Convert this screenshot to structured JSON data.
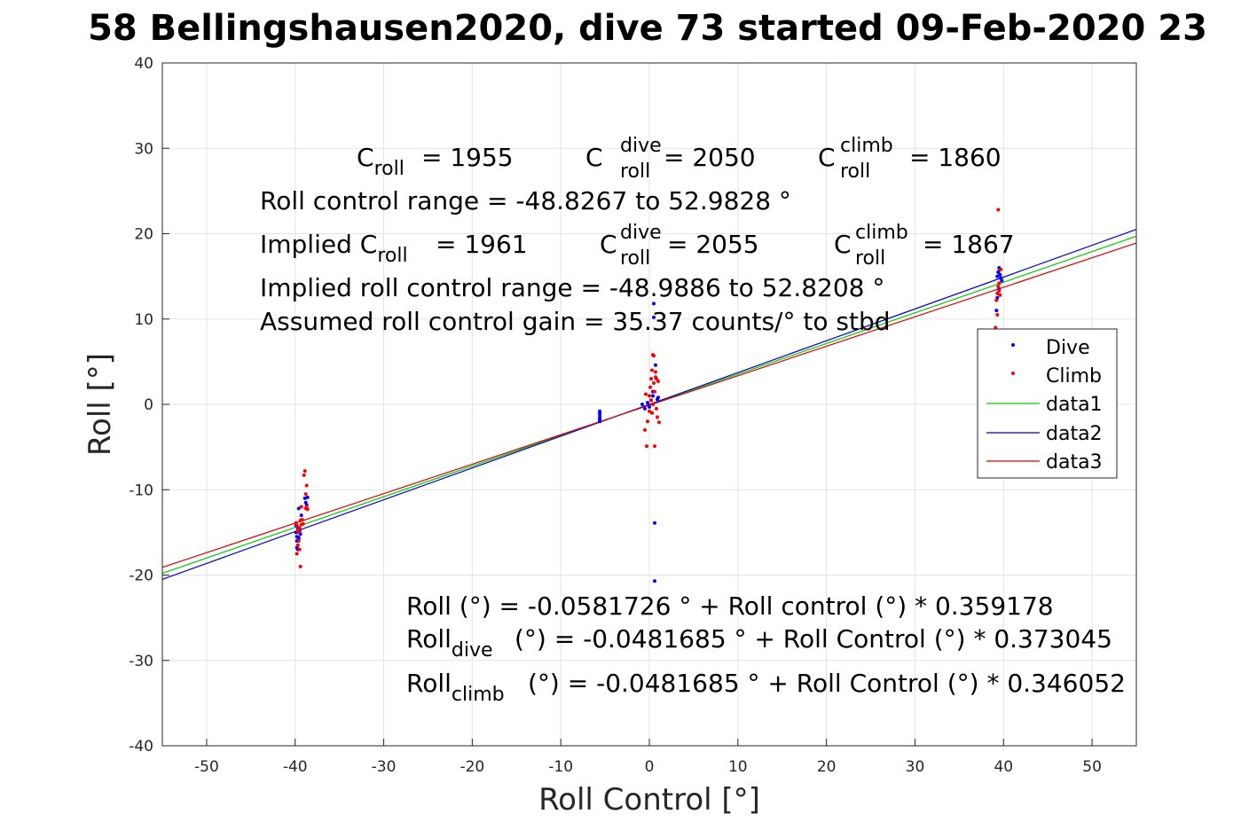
{
  "chart_data": {
    "type": "scatter",
    "title": "58 Bellingshausen2020, dive 73 started 09-Feb-2020 23",
    "xlabel": "Roll Control [°]",
    "ylabel": "Roll [°]",
    "xlim": [
      -55,
      55
    ],
    "ylim": [
      -40,
      40
    ],
    "xticks": [
      -50,
      -40,
      -30,
      -20,
      -10,
      0,
      10,
      20,
      30,
      40,
      50
    ],
    "yticks": [
      -40,
      -30,
      -20,
      -10,
      0,
      10,
      20,
      30,
      40
    ],
    "grid": true,
    "legend_position": "right",
    "colors": {
      "Dive": "#0000ff",
      "Climb": "#ff0000",
      "data1": "#00cc00",
      "data2": "#0000cc",
      "data3": "#dd0000"
    },
    "series": [
      {
        "name": "Dive",
        "kind": "points",
        "x": [
          -39.9,
          -39.8,
          -39.8,
          -39.7,
          -39.7,
          -39.6,
          -39.6,
          -39.5,
          -39.4,
          -39.3,
          -38.9,
          -38.8,
          -38.7,
          -38.6,
          -39.8,
          -39.7,
          -39.9,
          -39.6,
          -5.6,
          -5.6,
          -5.6,
          -5.6,
          -5.6,
          -5.6,
          -5.6,
          -0.8,
          -0.5,
          -0.2,
          0.0,
          0.2,
          0.4,
          0.5,
          0.5,
          0.6,
          0.6,
          0.7,
          0.9,
          1.0,
          0.3,
          0.4,
          39.3,
          39.4,
          39.5,
          39.6,
          39.6,
          39.7,
          39.8,
          39.2,
          39.3,
          39.5
        ],
        "y": [
          -15.0,
          -15.5,
          -16.0,
          -16.5,
          -14.5,
          -12.2,
          -15.8,
          -14.8,
          -15.2,
          -13.0,
          -11.0,
          -11.5,
          -11.8,
          -10.9,
          -16.8,
          -17.0,
          -14.2,
          -15.6,
          -0.8,
          -1.0,
          -1.2,
          -1.5,
          -1.7,
          -1.9,
          -2.0,
          0.0,
          -0.5,
          0.2,
          -0.3,
          0.5,
          1.0,
          11.8,
          10.2,
          -13.9,
          -20.7,
          4.6,
          0.6,
          0.8,
          -1.0,
          1.5,
          15.0,
          15.5,
          16.0,
          15.8,
          15.2,
          14.8,
          14.5,
          11.0,
          12.5,
          13.5
        ]
      },
      {
        "name": "Climb",
        "kind": "points",
        "x": [
          -39.9,
          -39.8,
          -39.7,
          -39.6,
          -39.5,
          -39.4,
          -39.3,
          -39.2,
          -39.1,
          -39.0,
          -38.9,
          -38.8,
          -38.8,
          -38.7,
          -39.6,
          -39.5,
          -39.4,
          -39.7,
          -39.8,
          -39.3,
          -38.7,
          -38.6,
          -0.5,
          -0.3,
          -0.2,
          0.0,
          0.1,
          0.2,
          0.3,
          0.4,
          0.5,
          0.5,
          0.6,
          0.7,
          0.8,
          0.8,
          0.9,
          1.0,
          1.1,
          0.2,
          0.3,
          0.4,
          0.6,
          -0.4,
          0.0,
          0.7,
          39.2,
          39.3,
          39.4,
          39.5,
          39.5,
          39.6,
          39.3,
          39.1,
          39.4,
          39.7
        ],
        "y": [
          -13.9,
          -14.2,
          -14.8,
          -16.0,
          -17.0,
          -19.0,
          -12.0,
          -13.5,
          -14.0,
          -8.3,
          -7.8,
          -10.5,
          -12.2,
          -12.0,
          -15.0,
          -14.5,
          -13.6,
          -16.5,
          -17.5,
          -14.1,
          -9.5,
          -12.3,
          -3.0,
          -4.9,
          -2.0,
          1.0,
          2.0,
          3.0,
          4.0,
          5.8,
          5.7,
          2.5,
          1.5,
          3.2,
          3.0,
          -0.5,
          -1.5,
          2.7,
          -2.1,
          0.5,
          -1.0,
          0.0,
          -4.9,
          1.2,
          -0.8,
          3.8,
          12.2,
          13.0,
          13.8,
          14.2,
          13.3,
          12.8,
          10.5,
          9.0,
          22.8,
          15.8
        ]
      },
      {
        "name": "data1",
        "kind": "line",
        "x": [
          -55,
          55
        ],
        "y": [
          -19.8,
          19.7
        ]
      },
      {
        "name": "data2",
        "kind": "line",
        "x": [
          -55,
          55
        ],
        "y": [
          -20.5,
          20.5
        ]
      },
      {
        "name": "data3",
        "kind": "line",
        "x": [
          -55,
          55
        ],
        "y": [
          -19.1,
          18.9
        ]
      }
    ],
    "annotations": {
      "c_roll": "= 1955",
      "c_roll_dive": "= 2050",
      "c_roll_climb": "= 1860",
      "range": "Roll control range = -48.8267 to 52.9828 °",
      "implied_prefix": "Implied C",
      "implied_c_roll": "= 1961",
      "implied_c_roll_dive": "= 2055",
      "implied_c_roll_climb": "= 1867",
      "implied_range": "Implied roll control range = -48.9886 to 52.8208 °",
      "gain": "Assumed roll control gain = 35.37 counts/° to stbd",
      "eq_all": "Roll (°) = -0.0581726 ° + Roll control (°) * 0.359178",
      "eq_dive_pre": "Roll",
      "eq_dive_sub": "dive",
      "eq_dive_post": "(°) = -0.0481685 ° + Roll Control (°) * 0.373045",
      "eq_climb_pre": "Roll",
      "eq_climb_sub": "climb",
      "eq_climb_post": "(°) = -0.0481685 ° + Roll Control (°) * 0.346052",
      "c_letter": "C",
      "sub_roll": "roll",
      "sup_dive": "dive",
      "sup_climb": "climb"
    }
  }
}
